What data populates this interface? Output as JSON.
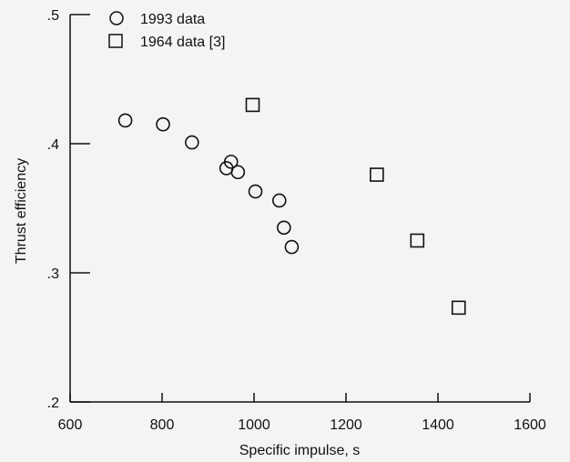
{
  "chart_data": {
    "type": "scatter",
    "title": "",
    "xlabel": "Specific impulse, s",
    "ylabel": "Thrust efficiency",
    "xlim": [
      600,
      1600
    ],
    "ylim": [
      0.2,
      0.5
    ],
    "x_ticks": [
      600,
      800,
      1000,
      1200,
      1400,
      1600
    ],
    "x_tick_labels": [
      "600",
      "800",
      "1000",
      "1200",
      "1400",
      "1600"
    ],
    "y_ticks": [
      0.2,
      0.3,
      0.4,
      0.5
    ],
    "y_tick_labels": [
      ".2",
      ".3",
      ".4",
      ".5"
    ],
    "grid": false,
    "legend_position": "top-left",
    "series": [
      {
        "name": "1993 data",
        "marker": "circle",
        "points": [
          {
            "x": 720,
            "y": 0.418
          },
          {
            "x": 802,
            "y": 0.415
          },
          {
            "x": 865,
            "y": 0.401
          },
          {
            "x": 940,
            "y": 0.381
          },
          {
            "x": 950,
            "y": 0.386
          },
          {
            "x": 965,
            "y": 0.378
          },
          {
            "x": 1003,
            "y": 0.363
          },
          {
            "x": 1055,
            "y": 0.356
          },
          {
            "x": 1065,
            "y": 0.335
          },
          {
            "x": 1082,
            "y": 0.32
          }
        ]
      },
      {
        "name": "1964 data [3]",
        "marker": "square",
        "points": [
          {
            "x": 997,
            "y": 0.43
          },
          {
            "x": 1267,
            "y": 0.376
          },
          {
            "x": 1355,
            "y": 0.325
          },
          {
            "x": 1445,
            "y": 0.273
          }
        ]
      }
    ]
  }
}
